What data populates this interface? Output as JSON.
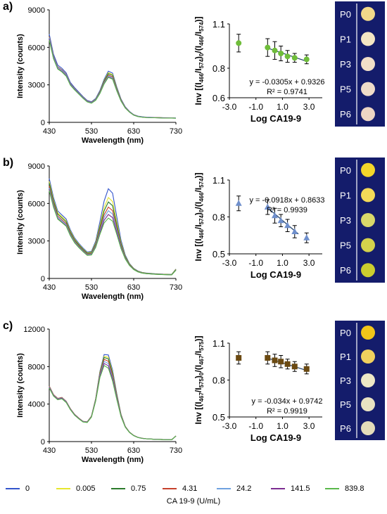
{
  "page": {
    "legend_title": "CA 19-9 (U/mL)"
  },
  "colors": {
    "plate_bg": "#141c6b",
    "plate_text": "#ffffff",
    "line_colors": [
      "#3355cc",
      "#e6e62e",
      "#2b7a2b",
      "#c6402c",
      "#6fa2e0",
      "#7b2c91",
      "#59b84a"
    ]
  },
  "legend": {
    "entries": [
      {
        "label": "0",
        "color": "#3355cc"
      },
      {
        "label": "0.005",
        "color": "#e6e62e"
      },
      {
        "label": "0.75",
        "color": "#2b7a2b"
      },
      {
        "label": "4.31",
        "color": "#c6402c"
      },
      {
        "label": "24.2",
        "color": "#6fa2e0"
      },
      {
        "label": "141.5",
        "color": "#7b2c91"
      },
      {
        "label": "839.8",
        "color": "#59b84a"
      }
    ]
  },
  "chart_data": [
    {
      "panel": "a)",
      "type": "line",
      "xlabel": "Wavelength (nm)",
      "ylabel": "Intensity (counts)",
      "xlim": [
        430,
        730
      ],
      "ylim": [
        0,
        9000
      ],
      "xticks": [
        "430",
        "530",
        "630",
        "730"
      ],
      "yticks": [
        "0",
        "3000",
        "6000",
        "9000"
      ],
      "baseline_curve": {
        "x": [
          430,
          440,
          450,
          460,
          470,
          480,
          490,
          500,
          510,
          520,
          530,
          540,
          550,
          560,
          570,
          580,
          590,
          600,
          610,
          620,
          630,
          640,
          650,
          660,
          680,
          700,
          720,
          730
        ],
        "y": [
          6850,
          5300,
          4450,
          4200,
          3850,
          3100,
          2700,
          2350,
          2000,
          1700,
          1600,
          1850,
          2450,
          3300,
          3900,
          3750,
          2700,
          1800,
          1200,
          850,
          600,
          480,
          430,
          400,
          380,
          360,
          350,
          340
        ]
      },
      "series": [
        {
          "name": "0",
          "scale": 1.03,
          "peak_scale": 1.05
        },
        {
          "name": "0.005",
          "scale": 1.0,
          "peak_scale": 1.02
        },
        {
          "name": "0.75",
          "scale": 1.0,
          "peak_scale": 1.0
        },
        {
          "name": "4.31",
          "scale": 1.0,
          "peak_scale": 0.97
        },
        {
          "name": "24.2",
          "scale": 0.99,
          "peak_scale": 0.95
        },
        {
          "name": "141.5",
          "scale": 0.97,
          "peak_scale": 0.93
        },
        {
          "name": "839.8",
          "scale": 0.96,
          "peak_scale": 0.92
        }
      ]
    },
    {
      "panel": "a)",
      "type": "scatter",
      "xlabel": "Log CA19-9",
      "ylabel_main": "Inv [(I",
      "ylabel_parts": [
        "466",
        "/I",
        "574",
        ")",
        "0",
        "/(I",
        "466",
        "/I",
        "574",
        ")]"
      ],
      "xlim": [
        -3.0,
        4.0
      ],
      "ylim": [
        0.6,
        1.1
      ],
      "xticks": [
        "-3.0",
        "-1.0",
        "1.0",
        "3.0"
      ],
      "yticks": [
        "0.6",
        "0.8",
        "1.1"
      ],
      "x": [
        -2.3,
        -0.12,
        0.42,
        0.88,
        1.38,
        1.92,
        2.82
      ],
      "y": [
        0.97,
        0.94,
        0.92,
        0.9,
        0.88,
        0.87,
        0.86
      ],
      "error": [
        0.06,
        0.06,
        0.06,
        0.05,
        0.04,
        0.03,
        0.03
      ],
      "marker": "circle",
      "marker_color": "#6fbd3a",
      "fit": {
        "slope": -0.0305,
        "intercept": 0.9326,
        "x_range": [
          -0.12,
          2.82
        ]
      },
      "equation": "y = -0.0305x + 0.9326",
      "r2": "R² = 0.9741"
    },
    {
      "panel": "b)",
      "type": "line",
      "xlabel": "Wavelength (nm)",
      "ylabel": "Intensity (counts)",
      "xlim": [
        430,
        730
      ],
      "ylim": [
        0,
        9000
      ],
      "xticks": [
        "430",
        "530",
        "630",
        "730"
      ],
      "yticks": [
        "0",
        "3000",
        "6000",
        "9000"
      ],
      "baseline_curve": {
        "x": [
          430,
          440,
          450,
          460,
          470,
          480,
          490,
          500,
          510,
          520,
          530,
          540,
          550,
          560,
          570,
          580,
          590,
          600,
          610,
          620,
          630,
          640,
          650,
          660,
          680,
          700,
          720,
          730
        ],
        "y": [
          7400,
          6000,
          5000,
          4700,
          4400,
          3600,
          3000,
          2600,
          2250,
          1950,
          2000,
          2700,
          4000,
          5300,
          6000,
          5700,
          4200,
          2700,
          1700,
          1100,
          750,
          550,
          450,
          400,
          350,
          320,
          300,
          700
        ]
      },
      "series": [
        {
          "name": "0",
          "scale": 1.08,
          "peak_scale": 1.2
        },
        {
          "name": "0.005",
          "scale": 1.05,
          "peak_scale": 1.08
        },
        {
          "name": "0.75",
          "scale": 1.03,
          "peak_scale": 1.02
        },
        {
          "name": "4.31",
          "scale": 1.0,
          "peak_scale": 0.95
        },
        {
          "name": "24.2",
          "scale": 0.98,
          "peak_scale": 0.9
        },
        {
          "name": "141.5",
          "scale": 0.96,
          "peak_scale": 0.85
        },
        {
          "name": "839.8",
          "scale": 0.95,
          "peak_scale": 0.8
        }
      ]
    },
    {
      "panel": "b)",
      "type": "scatter",
      "xlabel": "Log CA19-9",
      "ylabel_main": "Inv [(I",
      "ylabel_parts": [
        "466",
        "/I",
        "574",
        ")",
        "0",
        "/(I",
        "466",
        "/I",
        "574",
        ")]"
      ],
      "xlim": [
        -3.0,
        4.0
      ],
      "ylim": [
        0.5,
        1.1
      ],
      "xticks": [
        "-3.0",
        "-1.0",
        "1.0",
        "3.0"
      ],
      "yticks": [
        "0.5",
        "0.8",
        "1.1"
      ],
      "x": [
        -2.3,
        -0.12,
        0.42,
        0.88,
        1.38,
        1.92,
        2.82
      ],
      "y": [
        0.91,
        0.88,
        0.81,
        0.77,
        0.73,
        0.68,
        0.63
      ],
      "error": [
        0.06,
        0.06,
        0.06,
        0.05,
        0.05,
        0.05,
        0.04
      ],
      "marker": "triangle",
      "marker_color": "#6f8fcc",
      "fit": {
        "slope": -0.0918,
        "intercept": 0.8633,
        "x_range": [
          -0.12,
          2.2
        ]
      },
      "equation": "y = -0.0918x + 0.8633",
      "r2": "R² = 0.9939"
    },
    {
      "panel": "c)",
      "type": "line",
      "xlabel": "Wavelength (nm)",
      "ylabel": "Intensity (counts)",
      "xlim": [
        430,
        730
      ],
      "ylim": [
        0,
        12000
      ],
      "xticks": [
        "430",
        "530",
        "630",
        "730"
      ],
      "yticks": [
        "0",
        "4000",
        "8000",
        "12000"
      ],
      "baseline_curve": {
        "x": [
          430,
          440,
          450,
          460,
          470,
          480,
          490,
          500,
          510,
          520,
          530,
          540,
          550,
          560,
          570,
          580,
          590,
          600,
          610,
          620,
          630,
          640,
          650,
          660,
          680,
          700,
          720,
          730
        ],
        "y": [
          5900,
          5000,
          4600,
          4700,
          4300,
          3500,
          2900,
          2500,
          2150,
          2100,
          2700,
          4500,
          7200,
          8700,
          8500,
          7000,
          4800,
          2800,
          1600,
          1000,
          650,
          450,
          350,
          300,
          250,
          220,
          200,
          600
        ]
      },
      "series": [
        {
          "name": "0",
          "scale": 1.0,
          "peak_scale": 1.09
        },
        {
          "name": "0.005",
          "scale": 1.0,
          "peak_scale": 1.06
        },
        {
          "name": "0.75",
          "scale": 1.0,
          "peak_scale": 1.04
        },
        {
          "name": "4.31",
          "scale": 1.0,
          "peak_scale": 1.01
        },
        {
          "name": "24.2",
          "scale": 0.99,
          "peak_scale": 0.98
        },
        {
          "name": "141.5",
          "scale": 0.98,
          "peak_scale": 0.95
        },
        {
          "name": "839.8",
          "scale": 0.97,
          "peak_scale": 0.92
        }
      ]
    },
    {
      "panel": "c)",
      "type": "scatter",
      "xlabel": "Log CA19-9",
      "ylabel_main": "Inv [(I",
      "ylabel_parts": [
        "467",
        "/I",
        "575",
        ")",
        "0",
        "/(I",
        "467",
        "/I",
        "575",
        ")]"
      ],
      "xlim": [
        -3.0,
        4.0
      ],
      "ylim": [
        0.5,
        1.1
      ],
      "xticks": [
        "-3.0",
        "-1.0",
        "1.0",
        "3.0"
      ],
      "yticks": [
        "0.5",
        "0.8",
        "1.1"
      ],
      "x": [
        -2.3,
        -0.12,
        0.42,
        0.88,
        1.38,
        1.92,
        2.82
      ],
      "y": [
        0.98,
        0.98,
        0.96,
        0.95,
        0.93,
        0.91,
        0.89
      ],
      "error": [
        0.05,
        0.05,
        0.05,
        0.05,
        0.04,
        0.04,
        0.04
      ],
      "marker": "square",
      "marker_color": "#6b4a12",
      "fit": {
        "slope": -0.034,
        "intercept": 0.9742,
        "x_range": [
          -0.12,
          2.82
        ]
      },
      "equation": "y = -0.034x + 0.9742",
      "r2": "R² = 0.9919"
    }
  ],
  "plates": [
    {
      "labels": [
        "P0",
        "P1",
        "P3",
        "P5",
        "P6"
      ],
      "well_colors": [
        "#f2d98a",
        "#f4e6c4",
        "#f1dfc8",
        "#efdcc9",
        "#ecd5c4"
      ]
    },
    {
      "labels": [
        "P0",
        "P1",
        "P3",
        "P5",
        "P6"
      ],
      "well_colors": [
        "#f3d62a",
        "#f4da58",
        "#d9d86a",
        "#d4d14c",
        "#cbcd2f"
      ]
    },
    {
      "labels": [
        "P0",
        "P1",
        "P3",
        "P5",
        "P6"
      ],
      "well_colors": [
        "#f2c51a",
        "#f0d05e",
        "#ede8c6",
        "#e8e2c2",
        "#e3dcba"
      ]
    }
  ]
}
